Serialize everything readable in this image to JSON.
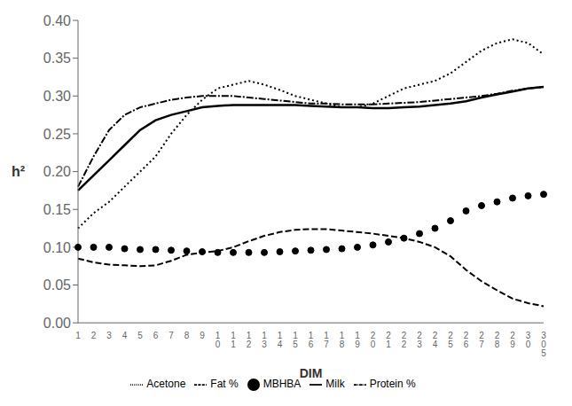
{
  "chart_data": {
    "type": "line",
    "xlabel": "DIM",
    "ylabel": "h²",
    "categories": [
      "1",
      "2",
      "3",
      "4",
      "5",
      "6",
      "7",
      "8",
      "9",
      "10",
      "11",
      "12",
      "13",
      "14",
      "15",
      "16",
      "17",
      "18",
      "19",
      "20",
      "21",
      "22",
      "23",
      "24",
      "25",
      "26",
      "27",
      "28",
      "29",
      "30",
      "305"
    ],
    "series": [
      {
        "name": "MBHBA",
        "color": "#000000",
        "marker": "circle",
        "line_style": "none",
        "values": [
          0.1,
          0.1,
          0.1,
          0.098,
          0.097,
          0.097,
          0.096,
          0.095,
          0.094,
          0.093,
          0.093,
          0.093,
          0.093,
          0.094,
          0.095,
          0.096,
          0.097,
          0.098,
          0.1,
          0.103,
          0.107,
          0.112,
          0.118,
          0.125,
          0.135,
          0.148,
          0.155,
          0.16,
          0.165,
          0.168,
          0.17
        ]
      },
      {
        "name": "Acetone",
        "color": "#000000",
        "line_style": "dotted",
        "values": [
          0.125,
          0.145,
          0.16,
          0.18,
          0.2,
          0.22,
          0.25,
          0.275,
          0.295,
          0.31,
          0.315,
          0.32,
          0.315,
          0.308,
          0.3,
          0.295,
          0.29,
          0.285,
          0.285,
          0.29,
          0.3,
          0.31,
          0.315,
          0.32,
          0.33,
          0.345,
          0.36,
          0.37,
          0.375,
          0.37,
          0.355
        ]
      },
      {
        "name": "Protein %",
        "color": "#000000",
        "line_style": "dashdot",
        "values": [
          0.18,
          0.22,
          0.255,
          0.275,
          0.285,
          0.29,
          0.295,
          0.298,
          0.3,
          0.3,
          0.3,
          0.298,
          0.296,
          0.294,
          0.292,
          0.29,
          0.29,
          0.289,
          0.289,
          0.289,
          0.29,
          0.291,
          0.292,
          0.294,
          0.296,
          0.298,
          0.3,
          0.303,
          0.307,
          0.31,
          0.312
        ]
      },
      {
        "name": "Fat %",
        "color": "#000000",
        "line_style": "dashed",
        "values": [
          0.085,
          0.08,
          0.077,
          0.076,
          0.075,
          0.076,
          0.082,
          0.09,
          0.093,
          0.095,
          0.1,
          0.108,
          0.115,
          0.12,
          0.123,
          0.124,
          0.124,
          0.122,
          0.12,
          0.118,
          0.115,
          0.112,
          0.107,
          0.1,
          0.088,
          0.07,
          0.055,
          0.043,
          0.032,
          0.026,
          0.022
        ]
      },
      {
        "name": "Milk",
        "color": "#000000",
        "line_style": "solid",
        "values": [
          0.175,
          0.195,
          0.215,
          0.235,
          0.255,
          0.268,
          0.275,
          0.28,
          0.285,
          0.287,
          0.288,
          0.288,
          0.288,
          0.288,
          0.288,
          0.287,
          0.286,
          0.285,
          0.285,
          0.284,
          0.284,
          0.285,
          0.286,
          0.288,
          0.29,
          0.293,
          0.298,
          0.302,
          0.306,
          0.31,
          0.312
        ]
      }
    ],
    "ylim": [
      0,
      0.4
    ],
    "yticks": [
      {
        "value": 0,
        "label": "0.00"
      },
      0.05,
      {
        "value": 0.1,
        "label": "0.10"
      },
      0.15,
      {
        "value": 0.2,
        "label": "0.20"
      },
      0.25,
      {
        "value": 0.3,
        "label": "0.30"
      },
      0.35,
      {
        "value": 0.4,
        "label": "0.40"
      }
    ],
    "grid": false,
    "legend": "bottom"
  }
}
